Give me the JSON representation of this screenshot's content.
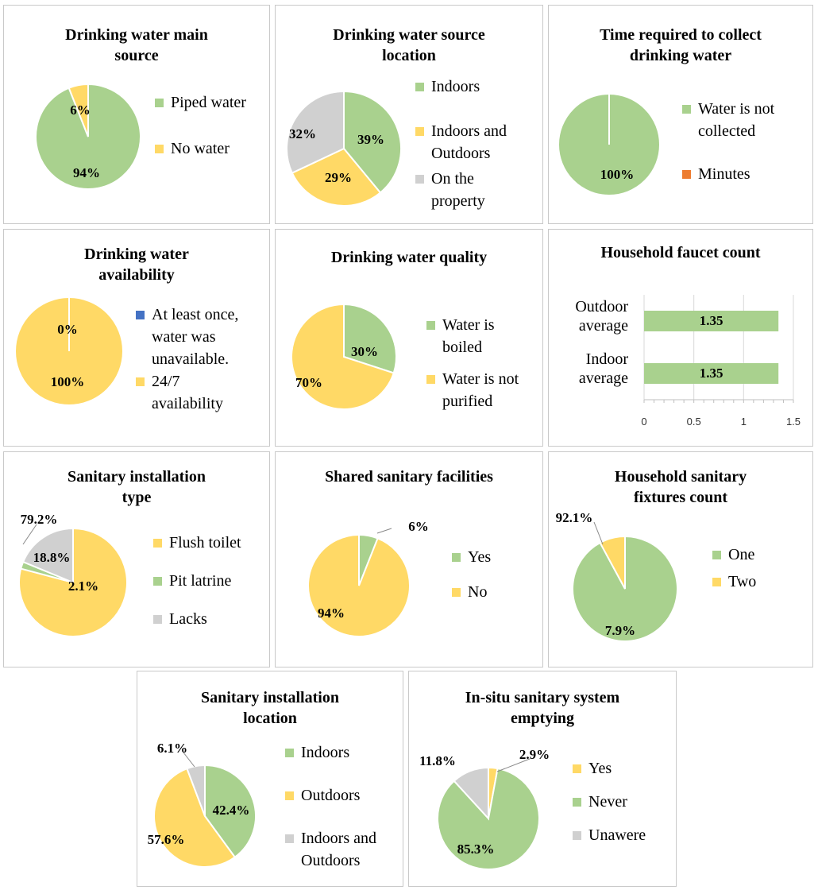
{
  "colors": {
    "green": "#a9d18e",
    "yellow": "#ffd966",
    "gray": "#d0d0d0",
    "blue": "#4472c4",
    "orange": "#ed7d31"
  },
  "chart_data": [
    {
      "id": "c1",
      "type": "pie",
      "title": "Drinking water main source",
      "slices": [
        {
          "label": "Piped water",
          "value": 94,
          "color": "green",
          "display": "94%"
        },
        {
          "label": "No water",
          "value": 6,
          "color": "yellow",
          "display": "6%"
        }
      ]
    },
    {
      "id": "c2",
      "type": "pie",
      "title": "Drinking water source location",
      "slices": [
        {
          "label": "Indoors",
          "value": 39,
          "color": "green",
          "display": "39%"
        },
        {
          "label": "Indoors and Outdoors",
          "value": 29,
          "color": "yellow",
          "display": "29%"
        },
        {
          "label": "On the property",
          "value": 32,
          "color": "gray",
          "display": "32%"
        }
      ]
    },
    {
      "id": "c3",
      "type": "pie",
      "title": "Time required to collect drinking water",
      "slices": [
        {
          "label": "Water is not collected",
          "value": 100,
          "color": "green",
          "display": "100%"
        },
        {
          "label": "Minutes",
          "value": 0,
          "color": "orange",
          "display": ""
        }
      ]
    },
    {
      "id": "c4",
      "type": "pie",
      "title": "Drinking water availability",
      "slices": [
        {
          "label": "At least once, water was unavailable.",
          "value": 0,
          "color": "blue",
          "display": "0%"
        },
        {
          "label": "24/7 availability",
          "value": 100,
          "color": "yellow",
          "display": "100%"
        }
      ]
    },
    {
      "id": "c5",
      "type": "pie",
      "title": "Drinking water quality",
      "slices": [
        {
          "label": "Water is boiled",
          "value": 30,
          "color": "green",
          "display": "30%"
        },
        {
          "label": "Water is not purified",
          "value": 70,
          "color": "yellow",
          "display": "70%"
        }
      ]
    },
    {
      "id": "c6",
      "type": "bar",
      "orientation": "horizontal",
      "title": "Household faucet count",
      "categories": [
        "Outdoor average",
        "Indoor average"
      ],
      "values": [
        1.35,
        1.35
      ],
      "display": [
        "1.35",
        "1.35"
      ],
      "xlim": [
        0,
        1.5
      ],
      "ticks": [
        "0",
        "0.5",
        "1",
        "1.5"
      ],
      "color": "green"
    },
    {
      "id": "c7",
      "type": "pie",
      "title": "Sanitary installation type",
      "slices": [
        {
          "label": "Flush toilet",
          "value": 79.2,
          "color": "yellow",
          "display": "79.2%"
        },
        {
          "label": "Pit latrine",
          "value": 2.1,
          "color": "green",
          "display": "2.1%"
        },
        {
          "label": "Lacks",
          "value": 18.8,
          "color": "gray",
          "display": "18.8%"
        }
      ]
    },
    {
      "id": "c8",
      "type": "pie",
      "title": "Shared sanitary facilities",
      "slices": [
        {
          "label": "Yes",
          "value": 6,
          "color": "green",
          "display": "6%"
        },
        {
          "label": "No",
          "value": 94,
          "color": "yellow",
          "display": "94%"
        }
      ]
    },
    {
      "id": "c9",
      "type": "pie",
      "title": "Household sanitary fixtures count",
      "slices": [
        {
          "label": "One",
          "value": 92.1,
          "color": "green",
          "display": "92.1%"
        },
        {
          "label": "Two",
          "value": 7.9,
          "color": "yellow",
          "display": "7.9%"
        }
      ]
    },
    {
      "id": "c10",
      "type": "pie",
      "title": "Sanitary installation location",
      "slices": [
        {
          "label": "Indoors",
          "value": 42.4,
          "color": "green",
          "display": "42.4%"
        },
        {
          "label": "Outdoors",
          "value": 57.6,
          "color": "yellow",
          "display": "57.6%"
        },
        {
          "label": "Indoors and Outdoors",
          "value": 6.1,
          "color": "gray",
          "display": "6.1%"
        }
      ]
    },
    {
      "id": "c11",
      "type": "pie",
      "title": "In-situ sanitary system emptying",
      "slices": [
        {
          "label": "Yes",
          "value": 2.9,
          "color": "yellow",
          "display": "2.9%"
        },
        {
          "label": "Never",
          "value": 85.3,
          "color": "green",
          "display": "85.3%"
        },
        {
          "label": "Unawere",
          "value": 11.8,
          "color": "gray",
          "display": "11.8%"
        }
      ]
    }
  ]
}
